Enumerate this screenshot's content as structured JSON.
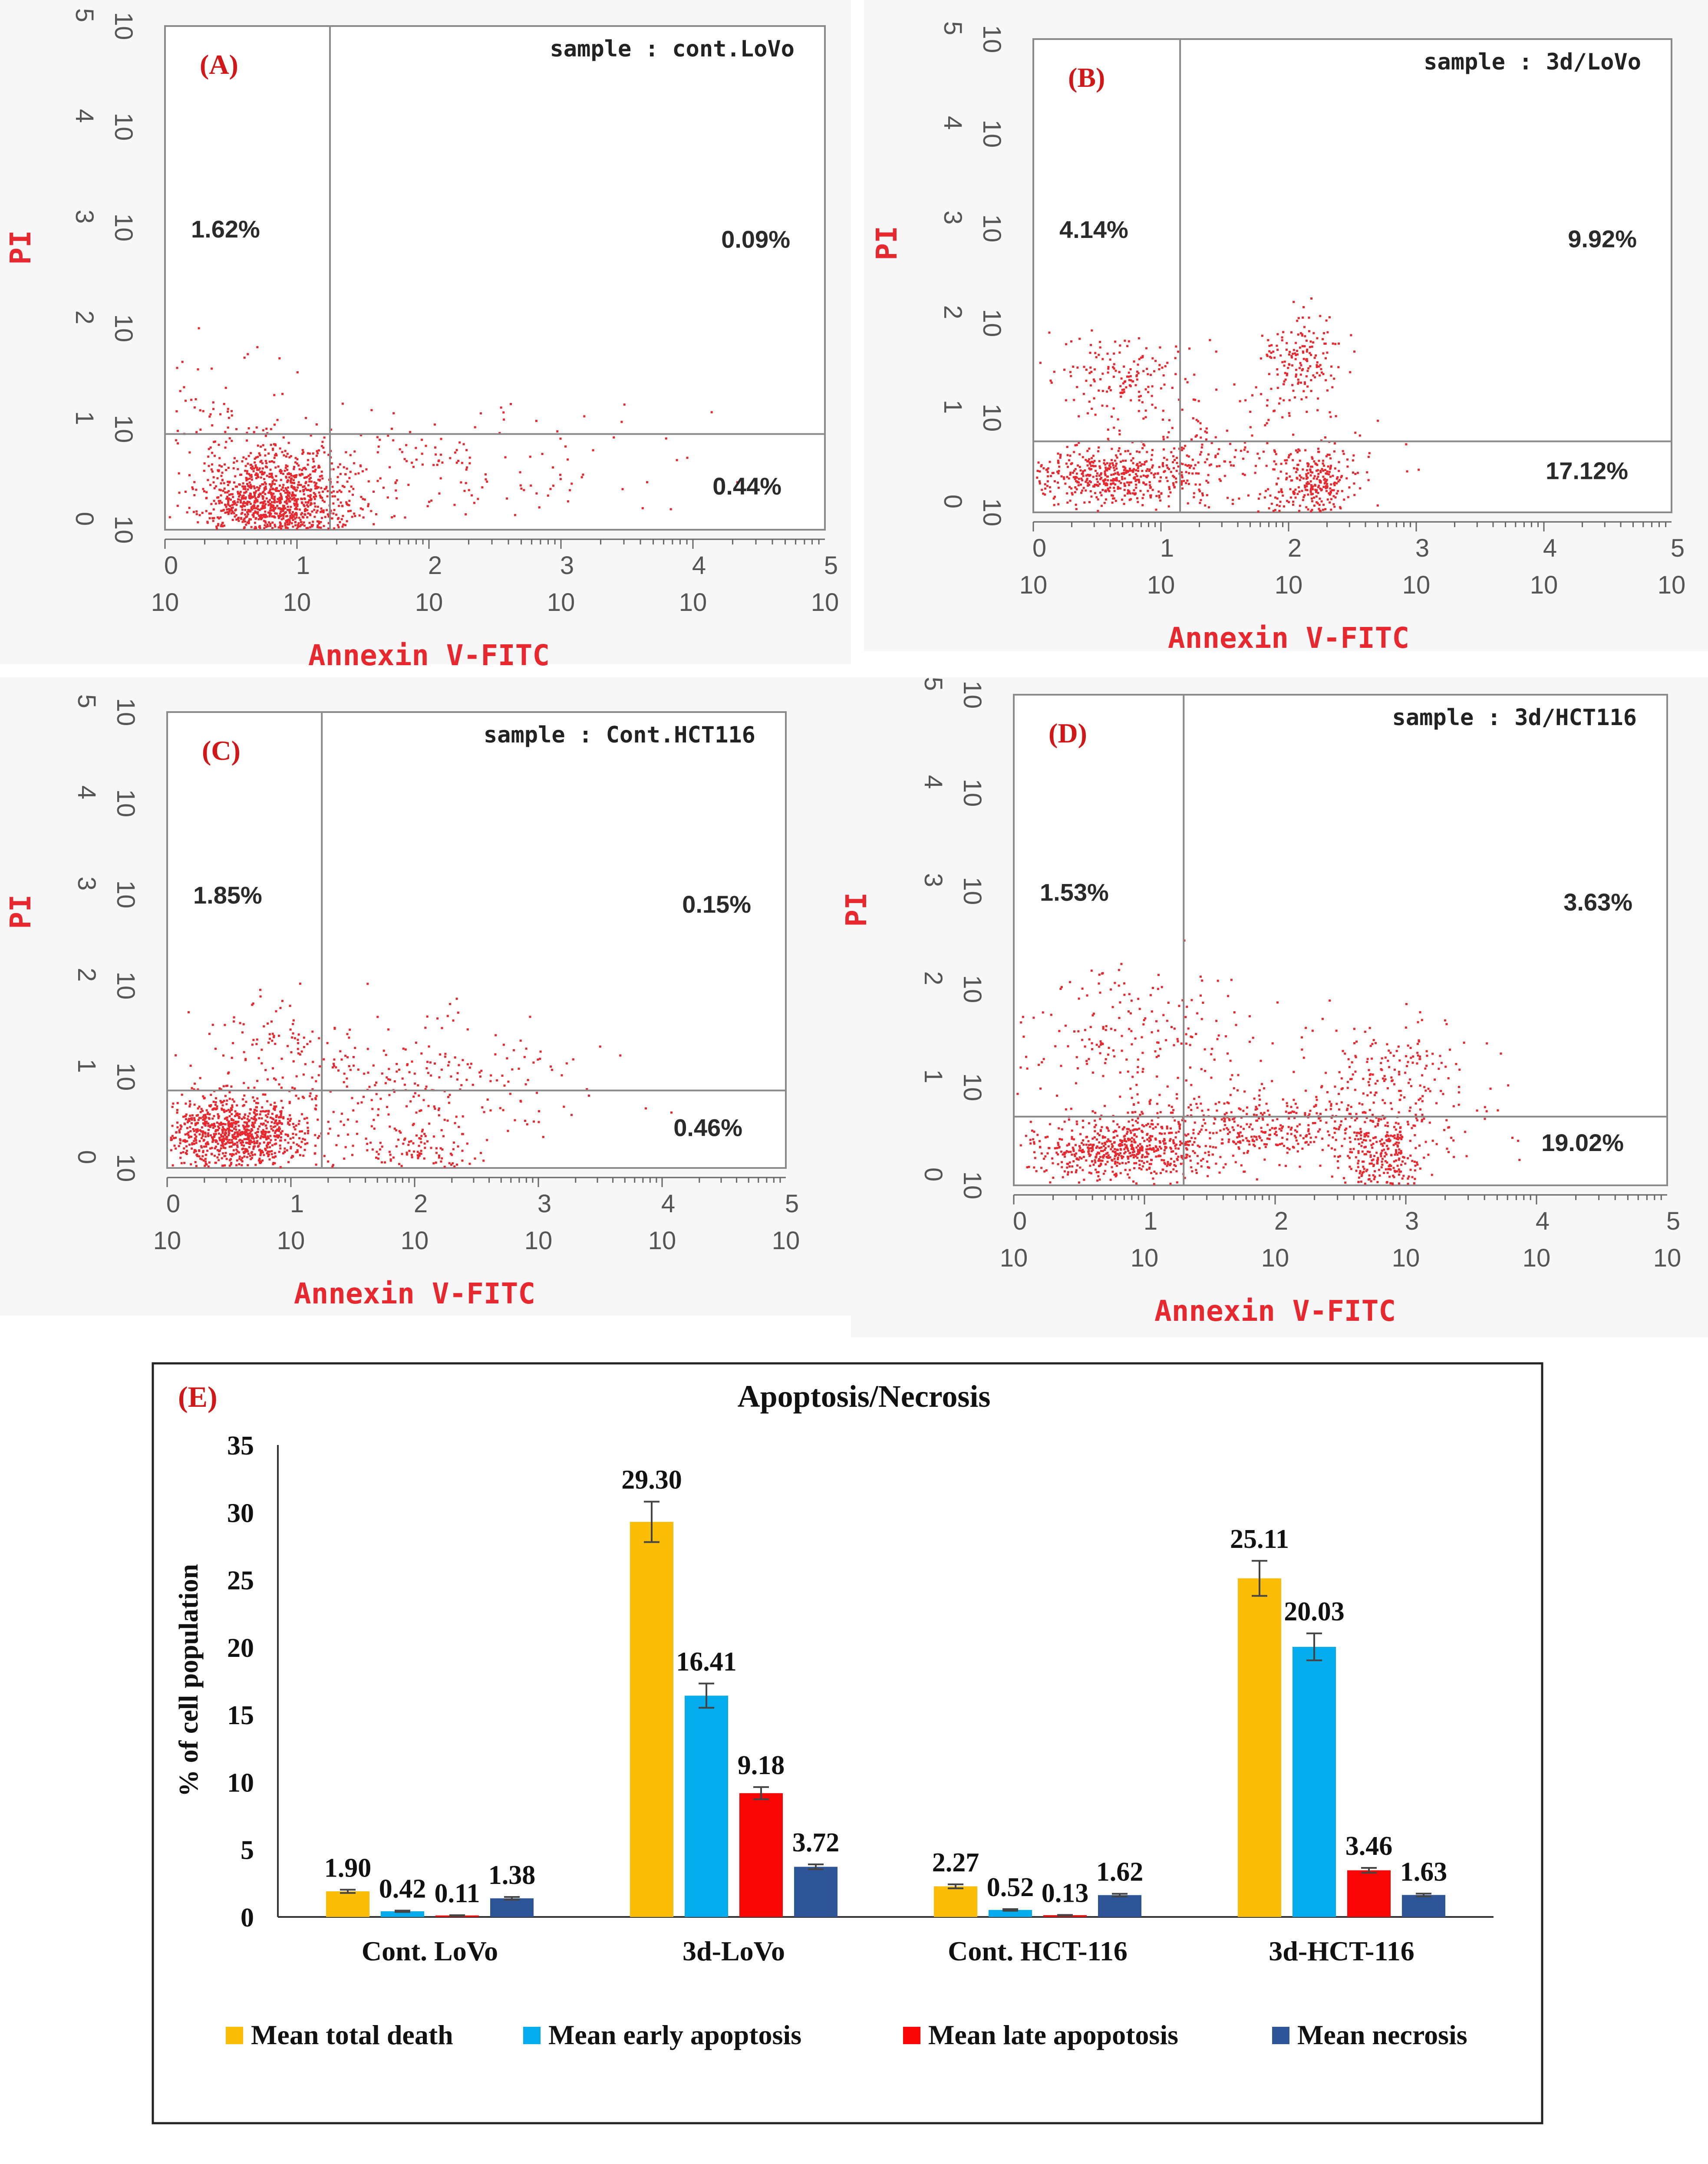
{
  "colors": {
    "dot": "#e8282f",
    "axis_label": "#e8282f",
    "panel_letter": "#d01818",
    "series": [
      "#fbbd05",
      "#04aced",
      "#fa0606",
      "#2e5597"
    ]
  },
  "chart_data": [
    {
      "type": "scatter",
      "panel": "(A)",
      "sample": "sample : cont.LoVo",
      "xlabel": "Annexin V-FITC",
      "ylabel": "PI",
      "x_ticks": [
        "0",
        "1",
        "2",
        "3",
        "4",
        "5"
      ],
      "y_ticks": [
        "0",
        "1",
        "2",
        "3",
        "4",
        "5"
      ],
      "tick_base": "10",
      "log_range": [
        0,
        5
      ],
      "gate": [
        1.25,
        0.95
      ],
      "quadrants": {
        "upper_left": "1.62%",
        "upper_right": "0.09%",
        "lower_right": "0.44%"
      },
      "clusters": [
        {
          "cx": 0.85,
          "cy": 0.25,
          "sx": 0.3,
          "sy": 0.28,
          "n": 1300
        },
        {
          "cx": 0.4,
          "cy": 1.3,
          "sx": 0.22,
          "sy": 0.3,
          "n": 60
        },
        {
          "cx": 2.2,
          "cy": 0.6,
          "sx": 0.8,
          "sy": 0.3,
          "n": 150
        }
      ]
    },
    {
      "type": "scatter",
      "panel": "(B)",
      "sample": "sample : 3d/LoVo",
      "xlabel": "Annexin V-FITC",
      "ylabel": "PI",
      "x_ticks": [
        "0",
        "1",
        "2",
        "3",
        "4",
        "5"
      ],
      "y_ticks": [
        "0",
        "1",
        "2",
        "3",
        "4",
        "5"
      ],
      "tick_base": "10",
      "log_range": [
        0,
        5
      ],
      "gate": [
        1.15,
        0.75
      ],
      "quadrants": {
        "upper_left": "4.14%",
        "upper_right": "9.92%",
        "lower_right": "17.12%"
      },
      "clusters": [
        {
          "cx": 0.6,
          "cy": 0.4,
          "sx": 0.35,
          "sy": 0.15,
          "n": 450
        },
        {
          "cx": 0.7,
          "cy": 1.45,
          "sx": 0.3,
          "sy": 0.2,
          "n": 160
        },
        {
          "cx": 2.1,
          "cy": 1.6,
          "sx": 0.15,
          "sy": 0.25,
          "n": 170
        },
        {
          "cx": 2.2,
          "cy": 0.3,
          "sx": 0.15,
          "sy": 0.2,
          "n": 260
        },
        {
          "cx": 1.4,
          "cy": 0.5,
          "sx": 0.6,
          "sy": 0.35,
          "n": 250
        }
      ]
    },
    {
      "type": "scatter",
      "panel": "(C)",
      "sample": "sample : Cont.HCT116",
      "xlabel": "Annexin V-FITC",
      "ylabel": "PI",
      "x_ticks": [
        "0",
        "1",
        "2",
        "3",
        "4",
        "5"
      ],
      "y_ticks": [
        "0",
        "1",
        "2",
        "3",
        "4",
        "5"
      ],
      "tick_base": "10",
      "log_range": [
        0,
        5
      ],
      "gate": [
        1.25,
        0.85
      ],
      "quadrants": {
        "upper_left": "1.85%",
        "upper_right": "0.15%",
        "lower_right": "0.46%"
      },
      "clusters": [
        {
          "cx": 0.55,
          "cy": 0.4,
          "sx": 0.32,
          "sy": 0.2,
          "n": 950
        },
        {
          "cx": 0.9,
          "cy": 1.3,
          "sx": 0.35,
          "sy": 0.3,
          "n": 120
        },
        {
          "cx": 2.0,
          "cy": 0.2,
          "sx": 0.3,
          "sy": 0.15,
          "n": 120
        },
        {
          "cx": 2.1,
          "cy": 1.0,
          "sx": 0.6,
          "sy": 0.35,
          "n": 200
        }
      ]
    },
    {
      "type": "scatter",
      "panel": "(D)",
      "sample": "sample : 3d/HCT116",
      "xlabel": "Annexin V-FITC",
      "ylabel": "PI",
      "x_ticks": [
        "0",
        "1",
        "2",
        "3",
        "4",
        "5"
      ],
      "y_ticks": [
        "0",
        "1",
        "2",
        "3",
        "4",
        "5"
      ],
      "tick_base": "10",
      "log_range": [
        0,
        5
      ],
      "gate": [
        1.3,
        0.7
      ],
      "quadrants": {
        "upper_left": "1.53%",
        "upper_right": "3.63%",
        "lower_right": "19.02%"
      },
      "clusters": [
        {
          "cx": 0.8,
          "cy": 0.35,
          "sx": 0.35,
          "sy": 0.15,
          "n": 550
        },
        {
          "cx": 2.8,
          "cy": 0.3,
          "sx": 0.18,
          "sy": 0.2,
          "n": 260
        },
        {
          "cx": 1.9,
          "cy": 0.6,
          "sx": 0.7,
          "sy": 0.2,
          "n": 500
        },
        {
          "cx": 2.9,
          "cy": 1.2,
          "sx": 0.3,
          "sy": 0.25,
          "n": 160
        },
        {
          "cx": 0.9,
          "cy": 1.5,
          "sx": 0.5,
          "sy": 0.35,
          "n": 200
        }
      ]
    },
    {
      "type": "bar",
      "panel": "(E)",
      "title": "Apoptosis/Necrosis",
      "ylabel": "%  of  cell population",
      "xlabel": "",
      "ylim": [
        0,
        35
      ],
      "y_ticks": [
        "0",
        "5",
        "10",
        "15",
        "20",
        "25",
        "30",
        "35"
      ],
      "categories": [
        "Cont. LoVo",
        "3d-LoVo",
        "Cont. HCT-116",
        "3d-HCT-116"
      ],
      "series": [
        {
          "name": "Mean total death",
          "values": [
            1.9,
            29.3,
            2.27,
            25.11
          ],
          "labels": [
            "1.90",
            "29.30",
            "2.27",
            "25.11"
          ],
          "errors": [
            0.12,
            1.5,
            0.15,
            1.3
          ]
        },
        {
          "name": "Mean early apoptosis",
          "values": [
            0.42,
            16.41,
            0.52,
            20.03
          ],
          "labels": [
            "0.42",
            "16.41",
            "0.52",
            "20.03"
          ],
          "errors": [
            0.05,
            0.9,
            0.06,
            1.0
          ]
        },
        {
          "name": "Mean late apopotosis",
          "values": [
            0.11,
            9.18,
            0.13,
            3.46
          ],
          "labels": [
            "0.11",
            "9.18",
            "0.13",
            "3.46"
          ],
          "errors": [
            0.02,
            0.45,
            0.02,
            0.18
          ]
        },
        {
          "name": "Mean necrosis",
          "values": [
            1.38,
            3.72,
            1.62,
            1.63
          ],
          "labels": [
            "1.38",
            "3.72",
            "1.62",
            "1.63"
          ],
          "errors": [
            0.1,
            0.18,
            0.1,
            0.1
          ]
        }
      ]
    }
  ]
}
